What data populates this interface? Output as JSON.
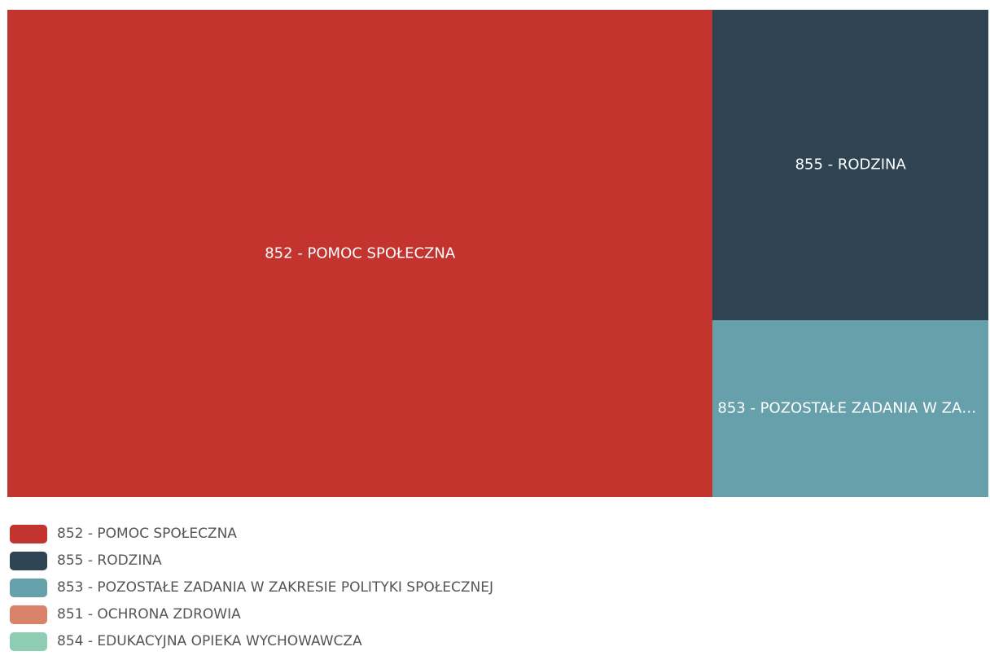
{
  "chart_data": {
    "type": "treemap",
    "categories": [
      "852 - POMOC SPOŁECZNA",
      "855 - RODZINA",
      "853 - POZOSTAŁE ZADANIA W ZAKRESIE POLITYKI SPOŁECZNEJ",
      "851 - OCHRONA ZDROWIA",
      "854 - EDUKACYJNA OPIEKA WYCHOWAWCZA"
    ],
    "values": [
      71.9,
      17.9,
      10.2,
      0,
      0
    ],
    "colors": [
      "#c4342f",
      "#2e4453",
      "#66a1ab",
      "#d9826a",
      "#8ecdb3"
    ]
  }
}
